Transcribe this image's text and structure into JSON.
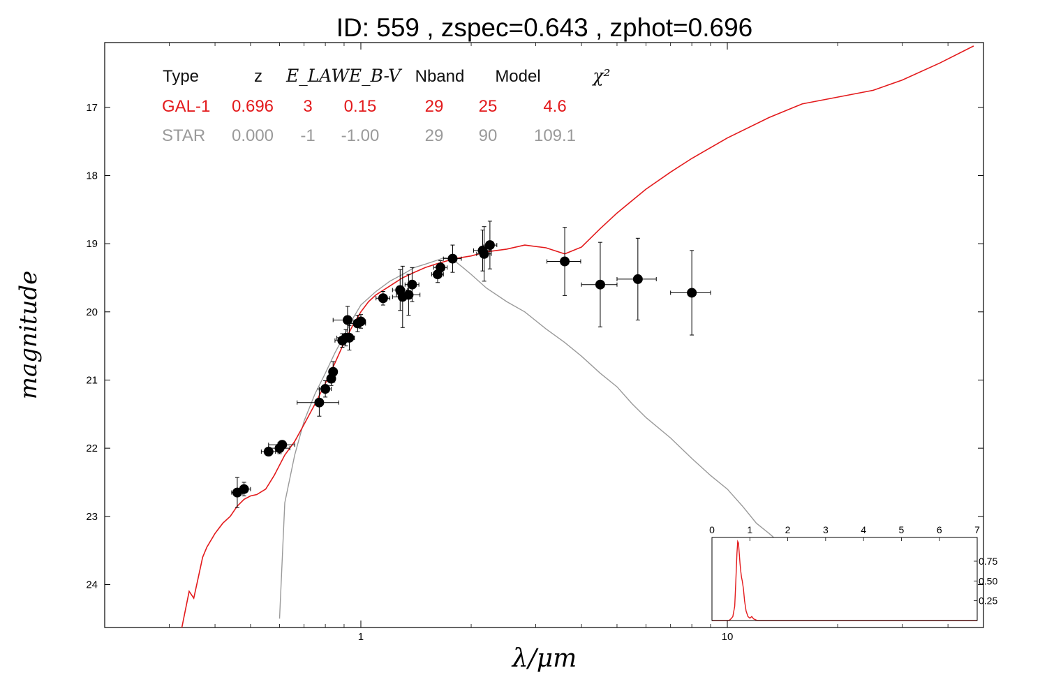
{
  "chart_data": {
    "type": "scatter",
    "title": "ID:  559   , zspec=0.643 , zphot=0.696",
    "xlabel": "λ/μm",
    "ylabel": "magnitude",
    "xscale": "log",
    "xlim": [
      0.2,
      50
    ],
    "ylim": [
      24.63,
      16.05
    ],
    "y_inverted": true,
    "x_ticks": [
      1,
      10
    ],
    "x_tick_labels": [
      "1",
      "10"
    ],
    "y_ticks": [
      17,
      18,
      19,
      20,
      21,
      22,
      23,
      24
    ],
    "y_tick_labels": [
      "17",
      "18",
      "19",
      "20",
      "21",
      "22",
      "23",
      "24"
    ],
    "fit_table": {
      "headers": [
        "Type",
        "z",
        "E_LAW",
        "E_B-V",
        "Nband",
        "Model",
        "χ²"
      ],
      "rows": [
        {
          "color": "#e31a1c",
          "cells": [
            "GAL-1",
            "0.696",
            "3",
            "0.15",
            "29",
            "25",
            "4.6"
          ]
        },
        {
          "color": "#9a9a9a",
          "cells": [
            "STAR",
            "0.000",
            "-1",
            "-1.00",
            "29",
            "90",
            "109.1"
          ]
        }
      ]
    },
    "series": [
      {
        "name": "GAL-1",
        "kind": "model-sed",
        "color": "#e31a1c",
        "x": [
          0.32,
          0.34,
          0.35,
          0.36,
          0.37,
          0.38,
          0.4,
          0.42,
          0.44,
          0.46,
          0.48,
          0.5,
          0.52,
          0.55,
          0.58,
          0.62,
          0.66,
          0.7,
          0.75,
          0.8,
          0.85,
          0.9,
          0.95,
          1.0,
          1.05,
          1.1,
          1.2,
          1.3,
          1.4,
          1.5,
          1.6,
          1.8,
          2.0,
          2.2,
          2.5,
          2.8,
          3.2,
          3.6,
          4.0,
          4.5,
          5.0,
          6.0,
          7.0,
          8.0,
          10.0,
          13.0,
          16.0,
          20.0,
          25.0,
          30.0,
          38.0,
          47.0
        ],
        "y": [
          24.8,
          24.1,
          24.2,
          23.9,
          23.6,
          23.45,
          23.25,
          23.1,
          23.0,
          22.85,
          22.75,
          22.7,
          22.68,
          22.6,
          22.4,
          22.1,
          21.9,
          21.65,
          21.35,
          21.05,
          20.75,
          20.45,
          20.2,
          20.0,
          19.85,
          19.75,
          19.62,
          19.5,
          19.42,
          19.35,
          19.3,
          19.22,
          19.18,
          19.12,
          19.08,
          19.02,
          19.06,
          19.15,
          19.05,
          18.78,
          18.55,
          18.2,
          17.95,
          17.75,
          17.45,
          17.15,
          16.95,
          16.85,
          16.75,
          16.6,
          16.35,
          16.1
        ]
      },
      {
        "name": "STAR",
        "kind": "model-sed",
        "color": "#9a9a9a",
        "x": [
          0.6,
          0.62,
          0.66,
          0.7,
          0.75,
          0.8,
          0.85,
          0.9,
          0.95,
          1.0,
          1.1,
          1.2,
          1.3,
          1.4,
          1.5,
          1.6,
          1.7,
          1.8,
          1.9,
          2.0,
          2.2,
          2.5,
          2.8,
          3.2,
          3.6,
          4.0,
          4.5,
          5.0,
          5.5,
          6.0,
          7.0,
          8.0,
          9.0,
          10.0,
          11.0,
          12.0,
          13.0,
          14.0
        ],
        "y": [
          24.5,
          22.8,
          22.1,
          21.6,
          21.2,
          20.9,
          20.6,
          20.35,
          20.1,
          19.9,
          19.7,
          19.55,
          19.45,
          19.35,
          19.3,
          19.25,
          19.2,
          19.25,
          19.35,
          19.45,
          19.65,
          19.85,
          20.0,
          20.25,
          20.45,
          20.65,
          20.9,
          21.1,
          21.35,
          21.55,
          21.85,
          22.15,
          22.4,
          22.6,
          22.85,
          23.1,
          23.25,
          23.4
        ]
      },
      {
        "name": "observed",
        "kind": "photometry",
        "color": "#000000",
        "points": [
          {
            "x": 0.46,
            "y": 22.65,
            "xerr": 0.016,
            "yerr": 0.22
          },
          {
            "x": 0.48,
            "y": 22.6,
            "xerr": 0.02,
            "yerr": 0.1
          },
          {
            "x": 0.56,
            "y": 22.05,
            "xerr": 0.025,
            "yerr": 0.06
          },
          {
            "x": 0.6,
            "y": 22.0,
            "xerr": 0.04,
            "yerr": 0.08
          },
          {
            "x": 0.61,
            "y": 21.95,
            "xerr": 0.05,
            "yerr": 0.06
          },
          {
            "x": 0.77,
            "y": 21.33,
            "xerr": 0.1,
            "yerr": 0.2
          },
          {
            "x": 0.8,
            "y": 21.13,
            "xerr": 0.03,
            "yerr": 0.12
          },
          {
            "x": 0.83,
            "y": 20.98,
            "xerr": 0.02,
            "yerr": 0.1
          },
          {
            "x": 0.84,
            "y": 20.88,
            "xerr": 0.02,
            "yerr": 0.15
          },
          {
            "x": 0.89,
            "y": 20.42,
            "xerr": 0.04,
            "yerr": 0.1
          },
          {
            "x": 0.91,
            "y": 20.38,
            "xerr": 0.05,
            "yerr": 0.12
          },
          {
            "x": 0.93,
            "y": 20.38,
            "xerr": 0.03,
            "yerr": 0.18
          },
          {
            "x": 0.92,
            "y": 20.12,
            "xerr": 0.08,
            "yerr": 0.2
          },
          {
            "x": 0.98,
            "y": 20.17,
            "xerr": 0.05,
            "yerr": 0.12
          },
          {
            "x": 1.0,
            "y": 20.14,
            "xerr": 0.03,
            "yerr": 0.1
          },
          {
            "x": 1.15,
            "y": 19.8,
            "xerr": 0.05,
            "yerr": 0.1
          },
          {
            "x": 1.28,
            "y": 19.68,
            "xerr": 0.06,
            "yerr": 0.3
          },
          {
            "x": 1.3,
            "y": 19.78,
            "xerr": 0.08,
            "yerr": 0.45
          },
          {
            "x": 1.35,
            "y": 19.75,
            "xerr": 0.1,
            "yerr": 0.3
          },
          {
            "x": 1.38,
            "y": 19.6,
            "xerr": 0.06,
            "yerr": 0.25
          },
          {
            "x": 1.62,
            "y": 19.45,
            "xerr": 0.06,
            "yerr": 0.12
          },
          {
            "x": 1.65,
            "y": 19.35,
            "xerr": 0.07,
            "yerr": 0.1
          },
          {
            "x": 1.78,
            "y": 19.22,
            "xerr": 0.1,
            "yerr": 0.2
          },
          {
            "x": 2.15,
            "y": 19.1,
            "xerr": 0.12,
            "yerr": 0.3
          },
          {
            "x": 2.17,
            "y": 19.15,
            "xerr": 0.1,
            "yerr": 0.4
          },
          {
            "x": 2.25,
            "y": 19.02,
            "xerr": 0.1,
            "yerr": 0.35
          },
          {
            "x": 3.6,
            "y": 19.26,
            "xerr": 0.38,
            "yerr": 0.5
          },
          {
            "x": 4.5,
            "y": 19.6,
            "xerr": 0.5,
            "yerr": 0.62
          },
          {
            "x": 5.7,
            "y": 19.52,
            "xerr": 0.7,
            "yerr": 0.6
          },
          {
            "x": 8.0,
            "y": 19.72,
            "xerr": 1.0,
            "yerr": 0.62
          }
        ]
      }
    ],
    "inset": {
      "type": "line",
      "color": "#e31a1c",
      "xlim": [
        0,
        7
      ],
      "ylim": [
        0,
        1.05
      ],
      "x_ticks": [
        0,
        1,
        2,
        3,
        4,
        5,
        6,
        7
      ],
      "x_tick_labels": [
        "0",
        "1",
        "2",
        "3",
        "4",
        "5",
        "6",
        "7"
      ],
      "y_ticks": [
        0.25,
        0.5,
        0.75
      ],
      "y_tick_labels": [
        "0.25",
        "0.50",
        "0.75"
      ],
      "x": [
        0,
        0.45,
        0.5,
        0.55,
        0.6,
        0.63,
        0.66,
        0.68,
        0.7,
        0.72,
        0.74,
        0.76,
        0.78,
        0.8,
        0.83,
        0.86,
        0.9,
        0.95,
        1.0,
        1.05,
        1.1,
        1.2,
        7.0
      ],
      "y": [
        0,
        0,
        0.02,
        0.05,
        0.18,
        0.5,
        0.85,
        1.0,
        0.98,
        0.85,
        0.72,
        0.62,
        0.55,
        0.5,
        0.4,
        0.25,
        0.12,
        0.05,
        0.03,
        0.05,
        0.02,
        0,
        0
      ]
    }
  }
}
